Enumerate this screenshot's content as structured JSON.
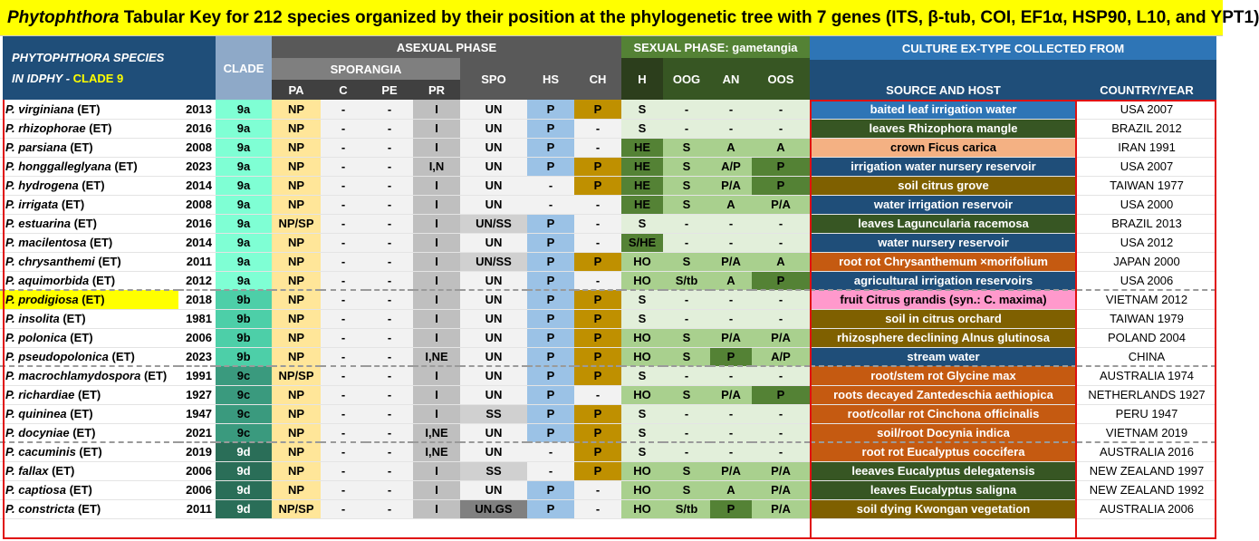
{
  "title": {
    "genus": "Phytophthora",
    "text": "  Tabular Key for 212 species organized by their position at the phylogenetic tree with 7 genes (ITS, β-tub, COI, EF1α, HSP90, L10, and YPT1)"
  },
  "header": {
    "species_line1": "PHYTOPHTHORA  SPECIES",
    "species_line2": "IN IDPHY - ",
    "clade_label": "CLADE 9",
    "clade": "CLADE",
    "asexual": "ASEXUAL PHASE",
    "sporangia": "SPORANGIA",
    "pa": "PA",
    "c": "C",
    "pe": "PE",
    "pr": "PR",
    "spo": "SPO",
    "hs": "HS",
    "ch": "CH",
    "sexual": "SEXUAL PHASE: gametangia",
    "h": "H",
    "oog": "OOG",
    "an": "AN",
    "oos": "OOS",
    "culture": "CULTURE EX-TYPE COLLECTED FROM",
    "source": "SOURCE AND HOST",
    "country": "COUNTRY/YEAR"
  },
  "colors": {
    "header_dark": "#1f4e79",
    "header_grey": "#595959",
    "header_green": "#548235",
    "clade_9a": "#7fffd4",
    "clade_9b": "#4dcfa8",
    "clade_9c": "#3a9a7e",
    "clade_9d": "#2a6e58",
    "pa_yellow": "#ffe699",
    "hs_blue": "#9bc2e6",
    "ch_gold": "#bf9000",
    "highlight": "#ffff00"
  },
  "rows": [
    {
      "sp": "P. virginiana",
      "et": " (ET)",
      "yr": "2013",
      "cl": "9a",
      "pa": "NP",
      "c": "-",
      "pe": "-",
      "pr": "I",
      "spo": "UN",
      "hs": "P",
      "ch": "P",
      "h": "S",
      "oog": "-",
      "an": "-",
      "oos": "-",
      "src": "baited leaf irrigation water",
      "country": "USA 2007",
      "srcColor": "#2e75b6"
    },
    {
      "sp": "P. rhizophorae",
      "et": " (ET)",
      "yr": "2016",
      "cl": "9a",
      "pa": "NP",
      "c": "-",
      "pe": "-",
      "pr": "I",
      "spo": "UN",
      "hs": "P",
      "ch": "-",
      "h": "S",
      "oog": "-",
      "an": "-",
      "oos": "-",
      "src": "leaves Rhizophora mangle",
      "country": "BRAZIL 2012",
      "srcColor": "#375623"
    },
    {
      "sp": "P. parsiana",
      "et": " (ET)",
      "yr": "2008",
      "cl": "9a",
      "pa": "NP",
      "c": "-",
      "pe": "-",
      "pr": "I",
      "spo": "UN",
      "hs": "P",
      "ch": "-",
      "h": "HE",
      "oog": "S",
      "an": "A",
      "oos": "A",
      "src": "crown Ficus carica",
      "country": "IRAN 1991",
      "srcColor": "#f4b183"
    },
    {
      "sp": "P. honggalleglyana",
      "et": " (ET)",
      "yr": "2023",
      "cl": "9a",
      "pa": "NP",
      "c": "-",
      "pe": "-",
      "pr": "I,N",
      "spo": "UN",
      "hs": "P",
      "ch": "P",
      "h": "HE",
      "oog": "S",
      "an": "A/P",
      "oos": "P",
      "src": "irrigation water nursery reservoir",
      "country": "USA 2007",
      "srcColor": "#1f4e79"
    },
    {
      "sp": "P. hydrogena",
      "et": " (ET)",
      "yr": "2014",
      "cl": "9a",
      "pa": "NP",
      "c": "-",
      "pe": "-",
      "pr": "I",
      "spo": "UN",
      "hs": "-",
      "ch": "P",
      "h": "HE",
      "oog": "S",
      "an": "P/A",
      "oos": "P",
      "src": "soil citrus grove",
      "country": "TAIWAN 1977",
      "srcColor": "#7f6000"
    },
    {
      "sp": "P. irrigata",
      "et": " (ET)",
      "yr": "2008",
      "cl": "9a",
      "pa": "NP",
      "c": "-",
      "pe": "-",
      "pr": "I",
      "spo": "UN",
      "hs": "-",
      "ch": "-",
      "h": "HE",
      "oog": "S",
      "an": "A",
      "oos": "P/A",
      "src": "water irrigation reservoir",
      "country": "USA 2000",
      "srcColor": "#1f4e79"
    },
    {
      "sp": "P. estuarina",
      "et": " (ET)",
      "yr": "2016",
      "cl": "9a",
      "pa": "NP/SP",
      "c": "-",
      "pe": "-",
      "pr": "I",
      "spo": "UN/SS",
      "hs": "P",
      "ch": "-",
      "h": "S",
      "oog": "-",
      "an": "-",
      "oos": "-",
      "src": "leaves Laguncularia racemosa",
      "country": "BRAZIL 2013",
      "srcColor": "#375623"
    },
    {
      "sp": "P. macilentosa",
      "et": " (ET)",
      "yr": "2014",
      "cl": "9a",
      "pa": "NP",
      "c": "-",
      "pe": "-",
      "pr": "I",
      "spo": "UN",
      "hs": "P",
      "ch": "-",
      "h": "S/HE",
      "oog": "-",
      "an": "-",
      "oos": "-",
      "src": "water nursery reservoir",
      "country": "USA 2012",
      "srcColor": "#1f4e79"
    },
    {
      "sp": "P. chrysanthemi",
      "et": " (ET)",
      "yr": "2011",
      "cl": "9a",
      "pa": "NP",
      "c": "-",
      "pe": "-",
      "pr": "I",
      "spo": "UN/SS",
      "hs": "P",
      "ch": "P",
      "h": "HO",
      "oog": "S",
      "an": "P/A",
      "oos": "A",
      "src": "root rot Chrysanthemum ×morifolium",
      "country": "JAPAN 2000",
      "srcColor": "#c55a11"
    },
    {
      "sp": "P. aquimorbida",
      "et": " (ET)",
      "yr": "2012",
      "cl": "9a",
      "pa": "NP",
      "c": "-",
      "pe": "-",
      "pr": "I",
      "spo": "UN",
      "hs": "P",
      "ch": "-",
      "h": "HO",
      "oog": "S/tb",
      "an": "A",
      "oos": "P",
      "src": "agricultural irrigation reservoirs",
      "country": "USA 2006",
      "srcColor": "#1f4e79"
    },
    {
      "sp": "P. prodigiosa",
      "et": " (ET)",
      "yr": "2018",
      "cl": "9b",
      "pa": "NP",
      "c": "-",
      "pe": "-",
      "pr": "I",
      "spo": "UN",
      "hs": "P",
      "ch": "P",
      "h": "S",
      "oog": "-",
      "an": "-",
      "oos": "-",
      "src": "fruit Citrus grandis  (syn.: C. maxima)",
      "country": "VIETNAM 2012",
      "srcColor": "#ff99cc",
      "hl": true
    },
    {
      "sp": "P. insolita",
      "et": " (ET)",
      "yr": "1981",
      "cl": "9b",
      "pa": "NP",
      "c": "-",
      "pe": "-",
      "pr": "I",
      "spo": "UN",
      "hs": "P",
      "ch": "P",
      "h": "S",
      "oog": "-",
      "an": "-",
      "oos": "-",
      "src": "soil in citrus orchard",
      "country": "TAIWAN 1979",
      "srcColor": "#7f6000"
    },
    {
      "sp": "P. polonica",
      "et": " (ET)",
      "yr": "2006",
      "cl": "9b",
      "pa": "NP",
      "c": "-",
      "pe": "-",
      "pr": "I",
      "spo": "UN",
      "hs": "P",
      "ch": "P",
      "h": "HO",
      "oog": "S",
      "an": "P/A",
      "oos": "P/A",
      "src": "rhizosphere declining Alnus glutinosa",
      "country": "POLAND 2004",
      "srcColor": "#7f6000"
    },
    {
      "sp": "P. pseudopolonica",
      "et": " (ET)",
      "yr": "2023",
      "cl": "9b",
      "pa": "NP",
      "c": "-",
      "pe": "-",
      "pr": "I,NE",
      "spo": "UN",
      "hs": "P",
      "ch": "P",
      "h": "HO",
      "oog": "S",
      "an": "P",
      "oos": "A/P",
      "src": "stream water",
      "country": "CHINA",
      "srcColor": "#1f4e79"
    },
    {
      "sp": "P. macrochlamydospora",
      "et": " (ET)",
      "yr": "1991",
      "cl": "9c",
      "pa": "NP/SP",
      "c": "-",
      "pe": "-",
      "pr": "I",
      "spo": "UN",
      "hs": "P",
      "ch": "P",
      "h": "S",
      "oog": "-",
      "an": "-",
      "oos": "-",
      "src": "root/stem rot Glycine max",
      "country": "AUSTRALIA 1974",
      "srcColor": "#c55a11"
    },
    {
      "sp": "P. richardiae",
      "et": " (ET)",
      "yr": "1927",
      "cl": "9c",
      "pa": "NP",
      "c": "-",
      "pe": "-",
      "pr": "I",
      "spo": "UN",
      "hs": "P",
      "ch": "-",
      "h": "HO",
      "oog": "S",
      "an": "P/A",
      "oos": "P",
      "src": "roots decayed Zantedeschia aethiopica",
      "country": "NETHERLANDS 1927",
      "srcColor": "#c55a11"
    },
    {
      "sp": "P. quininea",
      "et": " (ET)",
      "yr": "1947",
      "cl": "9c",
      "pa": "NP",
      "c": "-",
      "pe": "-",
      "pr": "I",
      "spo": "SS",
      "hs": "P",
      "ch": "P",
      "h": "S",
      "oog": "-",
      "an": "-",
      "oos": "-",
      "src": "root/collar rot Cinchona officinalis",
      "country": "PERU 1947",
      "srcColor": "#c55a11"
    },
    {
      "sp": "P. docyniae",
      "et": " (ET)",
      "yr": "2021",
      "cl": "9c",
      "pa": "NP",
      "c": "-",
      "pe": "-",
      "pr": "I,NE",
      "spo": "UN",
      "hs": "P",
      "ch": "P",
      "h": "S",
      "oog": "-",
      "an": "-",
      "oos": "-",
      "src": "soil/root Docynia indica",
      "country": "VIETNAM 2019",
      "srcColor": "#c55a11"
    },
    {
      "sp": "P. cacuminis",
      "et": " (ET)",
      "yr": "2019",
      "cl": "9d",
      "pa": "NP",
      "c": "-",
      "pe": "-",
      "pr": "I,NE",
      "spo": "UN",
      "hs": "-",
      "ch": "P",
      "h": "S",
      "oog": "-",
      "an": "-",
      "oos": "-",
      "src": "root rot Eucalyptus coccifera",
      "country": "AUSTRALIA 2016",
      "srcColor": "#c55a11"
    },
    {
      "sp": "P. fallax",
      "et": " (ET)",
      "yr": "2006",
      "cl": "9d",
      "pa": "NP",
      "c": "-",
      "pe": "-",
      "pr": "I",
      "spo": "SS",
      "hs": "-",
      "ch": "P",
      "h": "HO",
      "oog": "S",
      "an": "P/A",
      "oos": "P/A",
      "src": "leeaves Eucalyptus delegatensis",
      "country": "NEW ZEALAND 1997",
      "srcColor": "#375623"
    },
    {
      "sp": "P. captiosa",
      "et": " (ET)",
      "yr": "2006",
      "cl": "9d",
      "pa": "NP",
      "c": "-",
      "pe": "-",
      "pr": "I",
      "spo": "UN",
      "hs": "P",
      "ch": "-",
      "h": "HO",
      "oog": "S",
      "an": "A",
      "oos": "P/A",
      "src": "leaves Eucalyptus saligna",
      "country": "NEW ZEALAND 1992",
      "srcColor": "#375623"
    },
    {
      "sp": "P. constricta",
      "et": " (ET)",
      "yr": "2011",
      "cl": "9d",
      "pa": "NP/SP",
      "c": "-",
      "pe": "-",
      "pr": "I",
      "spo": "UN.GS",
      "hs": "P",
      "ch": "-",
      "h": "HO",
      "oog": "S/tb",
      "an": "P",
      "oos": "P/A",
      "src": "soil dying Kwongan vegetation",
      "country": "AUSTRALIA 2006",
      "srcColor": "#7f6000"
    }
  ]
}
